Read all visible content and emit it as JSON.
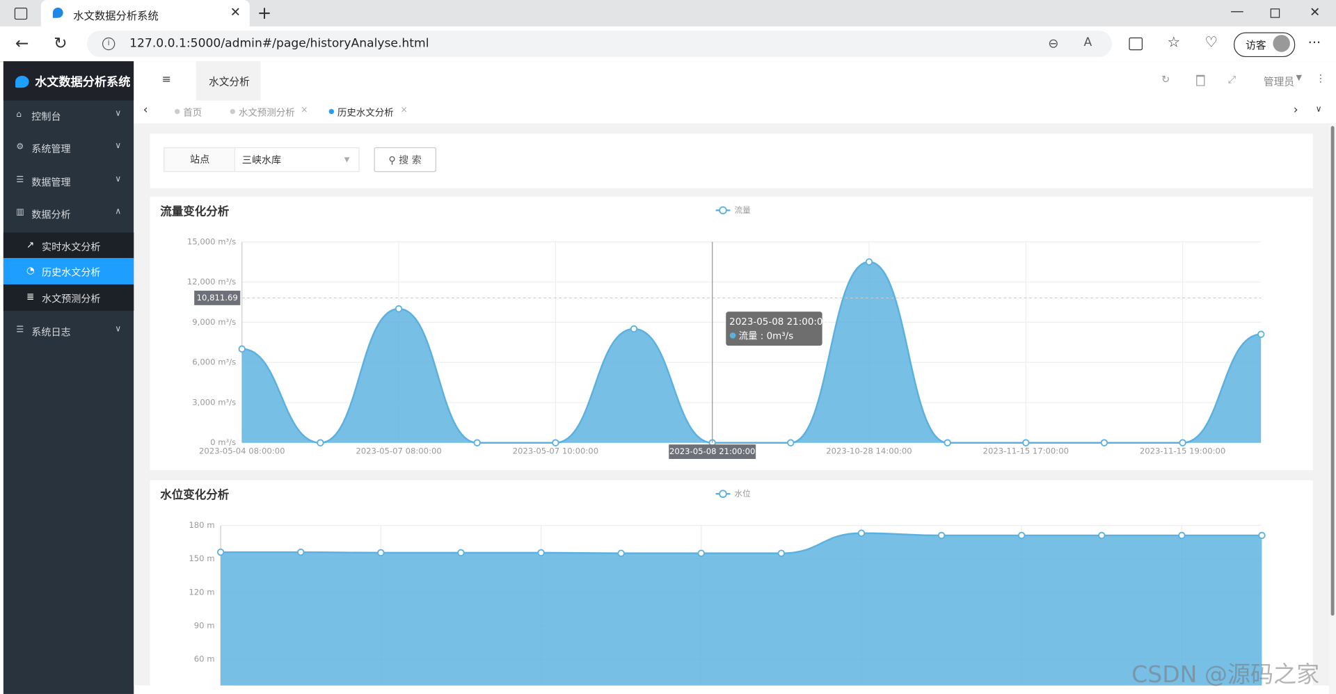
{
  "browser": {
    "tab_title": "水文数据分析系统",
    "url": "127.0.0.1:5000/admin#/page/historyAnalyse.html",
    "profile": "访客"
  },
  "sidebar": {
    "logo": "水文数据分析系统",
    "menu": [
      "控制台",
      "系统管理",
      "数据管理",
      "数据分析",
      "系统日志"
    ],
    "submenu": [
      "实时水文分析",
      "历史水文分析",
      "水文预测分析"
    ]
  },
  "header": {
    "tab": "水文分析",
    "user": "管理员"
  },
  "tabs": [
    "首页",
    "水文预测分析",
    "历史水文分析"
  ],
  "search": {
    "label": "站点",
    "value": "三峡水库",
    "button": "搜 索"
  },
  "chart_data": [
    {
      "type": "line",
      "area": true,
      "title": "流量变化分析",
      "legend": "top-center",
      "grid": true,
      "categories": [
        "2023-05-04 08:00:00",
        null,
        "2023-05-07 08:00:00",
        null,
        "2023-05-07 10:00:00",
        null,
        "2023-05-08 21:00:00",
        null,
        "2023-10-28 14:00:00",
        null,
        "2023-11-15 17:00:00",
        null,
        "2023-11-15 19:00:00",
        null
      ],
      "series": [
        {
          "name": "流量",
          "color": "#5ab1e0",
          "values": [
            7000,
            0,
            10000,
            0,
            0,
            8500,
            0,
            0,
            13500,
            0,
            0,
            0,
            0,
            8100
          ]
        }
      ],
      "ylim": [
        0,
        15000
      ],
      "yticks": [
        {
          "value": 0,
          "label": "0 m³/s"
        },
        {
          "value": 3000,
          "label": "3,000 m³/s"
        },
        {
          "value": 6000,
          "label": "6,000 m³/s"
        },
        {
          "value": 9000,
          "label": "9,000 m³/s"
        },
        {
          "value": 12000,
          "label": "12,000 m³/s"
        },
        {
          "value": 15000,
          "label": "15,000 m³/s"
        }
      ],
      "pointer_y": {
        "value": 10811.69,
        "label": "10,811.69"
      },
      "tooltip": {
        "title": "2023-05-08 21:00:00",
        "text": "流量 : 0m³/s"
      }
    },
    {
      "type": "line",
      "area": true,
      "title": "水位变化分析",
      "legend": "top-center",
      "grid": true,
      "categories": [
        null,
        null,
        null,
        null,
        null,
        null,
        null,
        null,
        null,
        null,
        null,
        null,
        null,
        null
      ],
      "series": [
        {
          "name": "水位",
          "color": "#5ab1e0",
          "values": [
            156,
            156,
            155.5,
            155.5,
            155.5,
            155,
            155,
            155,
            173,
            171,
            171,
            171,
            171,
            171
          ]
        }
      ],
      "ylim": [
        0,
        180
      ],
      "yticks": [
        {
          "value": 60,
          "label": "60 m"
        },
        {
          "value": 90,
          "label": "90 m"
        },
        {
          "value": 120,
          "label": "120 m"
        },
        {
          "value": 150,
          "label": "150 m"
        },
        {
          "value": 180,
          "label": "180 m"
        }
      ]
    }
  ],
  "watermark": "CSDN @源码之家"
}
